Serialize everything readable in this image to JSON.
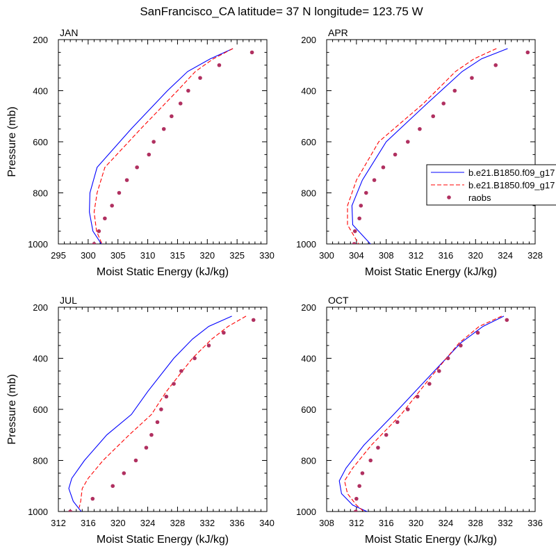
{
  "title": "SanFrancisco_CA  latitude= 37 N longitude= 123.75 W",
  "legend": {
    "entries": [
      {
        "label": "b.e21.B1850.f09_g17",
        "style": "solid",
        "color": "#0000ff"
      },
      {
        "label": "b.e21.B1850.f09_g17",
        "style": "dashed",
        "color": "#ff0000"
      },
      {
        "label": "raobs",
        "style": "dot",
        "color": "#b03060"
      }
    ]
  },
  "chart_data": [
    {
      "type": "line",
      "panel": "JAN",
      "title": "JAN",
      "xlabel": "Moist Static Energy (kJ/kg)",
      "ylabel": "Pressure (mb)",
      "xlim": [
        295,
        330
      ],
      "ylim": [
        1000,
        200
      ],
      "xticks": [
        "295",
        "300",
        "305",
        "310",
        "315",
        "320",
        "325",
        "330"
      ],
      "yticks": [
        "200",
        "400",
        "600",
        "800",
        "1000"
      ],
      "series": [
        {
          "name": "b.e21.B1850.f09_g17",
          "style": "solid",
          "color": "#0000ff",
          "x": [
            324.3,
            320.5,
            316.7,
            313.3,
            307.2,
            301.5,
            300.3,
            300.2,
            300.8,
            302.5
          ],
          "y": [
            235,
            275,
            325,
            400,
            550,
            700,
            800,
            875,
            950,
            1010
          ]
        },
        {
          "name": "b.e21.B1850.f09_g17",
          "style": "dashed",
          "color": "#ff0000",
          "x": [
            324.3,
            321.0,
            318.0,
            315.0,
            308.8,
            302.8,
            301.5,
            301.0,
            301.4,
            302.5
          ],
          "y": [
            235,
            275,
            325,
            400,
            550,
            700,
            800,
            875,
            950,
            1010
          ]
        },
        {
          "name": "raobs",
          "style": "dot",
          "color": "#b03060",
          "x": [
            327.5,
            322.0,
            318.8,
            316.8,
            315.5,
            314.0,
            312.7,
            311.0,
            310.2,
            308.2,
            306.5,
            305.2,
            304.0,
            302.8,
            301.8,
            301.0
          ],
          "y": [
            250,
            300,
            350,
            400,
            450,
            500,
            550,
            600,
            650,
            700,
            750,
            800,
            850,
            900,
            950,
            1000
          ]
        }
      ]
    },
    {
      "type": "line",
      "panel": "APR",
      "title": "APR",
      "xlabel": "Moist Static Energy (kJ/kg)",
      "ylabel": "",
      "xlim": [
        300,
        328
      ],
      "ylim": [
        1000,
        200
      ],
      "xticks": [
        "300",
        "304",
        "308",
        "312",
        "316",
        "320",
        "324",
        "328"
      ],
      "yticks": [
        "200",
        "400",
        "600",
        "800",
        "1000"
      ],
      "series": [
        {
          "name": "b.e21.B1850.f09_g17",
          "style": "solid",
          "color": "#0000ff",
          "x": [
            324.3,
            320.8,
            318.2,
            313.5,
            308.0,
            304.8,
            303.4,
            303.5,
            306.2
          ],
          "y": [
            235,
            275,
            325,
            450,
            600,
            750,
            850,
            925,
            1010
          ]
        },
        {
          "name": "b.e21.B1850.f09_g17",
          "style": "dashed",
          "color": "#ff0000",
          "x": [
            322.8,
            319.8,
            317.3,
            313.0,
            307.0,
            304.0,
            302.8,
            302.8,
            304.5
          ],
          "y": [
            235,
            275,
            325,
            450,
            600,
            750,
            850,
            925,
            1010
          ]
        },
        {
          "name": "raobs",
          "style": "dot",
          "color": "#b03060",
          "x": [
            327.0,
            322.7,
            319.5,
            317.2,
            315.7,
            314.3,
            312.5,
            310.9,
            309.2,
            307.6,
            306.4,
            305.3,
            304.6,
            304.4,
            303.8,
            303.7
          ],
          "y": [
            250,
            300,
            350,
            400,
            450,
            500,
            550,
            600,
            650,
            700,
            750,
            800,
            850,
            900,
            950,
            1000
          ]
        }
      ]
    },
    {
      "type": "line",
      "panel": "JUL",
      "title": "JUL",
      "xlabel": "Moist Static Energy (kJ/kg)",
      "ylabel": "Pressure (mb)",
      "xlim": [
        312,
        340
      ],
      "ylim": [
        1000,
        200
      ],
      "xticks": [
        "312",
        "316",
        "320",
        "324",
        "328",
        "332",
        "336",
        "340"
      ],
      "yticks": [
        "200",
        "400",
        "600",
        "800",
        "1000"
      ],
      "series": [
        {
          "name": "b.e21.B1850.f09_g17",
          "style": "solid",
          "color": "#0000ff",
          "x": [
            335.3,
            332.2,
            330.0,
            327.5,
            324.0,
            321.8,
            318.5,
            315.5,
            313.8,
            313.4,
            314.0,
            315.2
          ],
          "y": [
            235,
            275,
            325,
            400,
            530,
            620,
            700,
            800,
            870,
            910,
            960,
            1005
          ]
        },
        {
          "name": "b.e21.B1850.f09_g17",
          "style": "dashed",
          "color": "#ff0000",
          "x": [
            337.2,
            334.8,
            332.6,
            330.0,
            326.5,
            324.5,
            321.5,
            318.0,
            316.0,
            315.2,
            315.0,
            314.8
          ],
          "y": [
            235,
            275,
            325,
            400,
            530,
            620,
            700,
            800,
            870,
            910,
            960,
            985
          ]
        },
        {
          "name": "raobs",
          "style": "dot",
          "color": "#b03060",
          "x": [
            338.2,
            334.2,
            332.2,
            330.3,
            328.5,
            327.5,
            326.5,
            325.8,
            325.3,
            324.5,
            323.8,
            322.4,
            320.8,
            319.3,
            316.6,
            313.6
          ],
          "y": [
            250,
            300,
            350,
            400,
            450,
            500,
            550,
            600,
            650,
            700,
            750,
            800,
            850,
            900,
            950,
            1000
          ]
        }
      ]
    },
    {
      "type": "line",
      "panel": "OCT",
      "title": "OCT",
      "xlabel": "Moist Static Energy (kJ/kg)",
      "ylabel": "",
      "xlim": [
        308,
        336
      ],
      "ylim": [
        1000,
        200
      ],
      "xticks": [
        "308",
        "312",
        "316",
        "320",
        "324",
        "328",
        "332",
        "336"
      ],
      "yticks": [
        "200",
        "400",
        "600",
        "800",
        "1000"
      ],
      "series": [
        {
          "name": "b.e21.B1850.f09_g17",
          "style": "solid",
          "color": "#0000ff",
          "x": [
            331.8,
            329.0,
            326.0,
            321.5,
            317.0,
            313.0,
            310.6,
            309.7,
            310.0,
            311.5,
            313.8
          ],
          "y": [
            235,
            275,
            340,
            480,
            620,
            740,
            830,
            880,
            930,
            975,
            1005
          ]
        },
        {
          "name": "b.e21.B1850.f09_g17",
          "style": "dashed",
          "color": "#ff0000",
          "x": [
            331.5,
            328.5,
            325.8,
            321.8,
            318.0,
            314.0,
            311.5,
            310.4,
            310.8,
            312.0,
            313.0
          ],
          "y": [
            235,
            275,
            340,
            480,
            620,
            740,
            830,
            880,
            930,
            975,
            1000
          ]
        },
        {
          "name": "raobs",
          "style": "dot",
          "color": "#b03060",
          "x": [
            332.2,
            328.3,
            326.0,
            324.3,
            323.1,
            321.8,
            320.2,
            318.9,
            317.5,
            316.0,
            314.9,
            313.9,
            312.8,
            312.4,
            312.0,
            311.9
          ],
          "y": [
            250,
            300,
            350,
            400,
            450,
            500,
            550,
            600,
            650,
            700,
            750,
            800,
            850,
            900,
            950,
            1000
          ]
        }
      ]
    }
  ]
}
